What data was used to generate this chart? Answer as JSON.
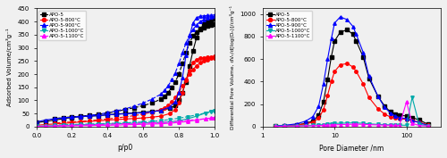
{
  "left": {
    "series": [
      {
        "label": "APO-5",
        "color": "#000000",
        "marker": "s",
        "adsorption_x": [
          0.0,
          0.05,
          0.1,
          0.15,
          0.2,
          0.25,
          0.3,
          0.35,
          0.4,
          0.45,
          0.5,
          0.55,
          0.6,
          0.65,
          0.7,
          0.75,
          0.78,
          0.8,
          0.82,
          0.84,
          0.86,
          0.88,
          0.9,
          0.92,
          0.94,
          0.96,
          0.98,
          1.0
        ],
        "adsorption_y": [
          15,
          20,
          25,
          30,
          35,
          38,
          40,
          42,
          45,
          48,
          50,
          52,
          55,
          58,
          62,
          70,
          80,
          100,
          130,
          170,
          230,
          290,
          340,
          370,
          390,
          400,
          405,
          410
        ],
        "desorption_x": [
          1.0,
          0.98,
          0.96,
          0.94,
          0.92,
          0.9,
          0.88,
          0.86,
          0.84,
          0.82,
          0.8,
          0.78,
          0.76,
          0.74,
          0.72,
          0.7,
          0.65,
          0.6,
          0.55,
          0.5,
          0.45,
          0.4,
          0.35,
          0.3,
          0.25,
          0.2,
          0.15,
          0.1
        ],
        "desorption_y": [
          390,
          388,
          383,
          378,
          372,
          360,
          345,
          320,
          280,
          240,
          200,
          170,
          150,
          130,
          115,
          105,
          90,
          80,
          72,
          65,
          58,
          52,
          47,
          43,
          40,
          37,
          35,
          30
        ]
      },
      {
        "label": "APO-5-800°C",
        "color": "#ff0000",
        "marker": "o",
        "adsorption_x": [
          0.0,
          0.05,
          0.1,
          0.15,
          0.2,
          0.25,
          0.3,
          0.35,
          0.4,
          0.45,
          0.5,
          0.55,
          0.6,
          0.65,
          0.7,
          0.75,
          0.78,
          0.8,
          0.82,
          0.84,
          0.86,
          0.88,
          0.9,
          0.92,
          0.94,
          0.96,
          0.98,
          1.0
        ],
        "adsorption_y": [
          5,
          8,
          10,
          12,
          15,
          18,
          20,
          22,
          25,
          27,
          29,
          31,
          33,
          36,
          40,
          50,
          65,
          90,
          130,
          175,
          215,
          245,
          255,
          260,
          262,
          264,
          265,
          267
        ],
        "desorption_x": [
          1.0,
          0.98,
          0.96,
          0.94,
          0.92,
          0.9,
          0.88,
          0.86,
          0.84,
          0.82,
          0.8,
          0.78,
          0.76,
          0.74,
          0.72,
          0.7,
          0.65,
          0.6,
          0.55,
          0.5,
          0.45,
          0.4,
          0.35,
          0.3,
          0.25,
          0.2,
          0.15,
          0.1
        ],
        "desorption_y": [
          262,
          260,
          255,
          250,
          243,
          232,
          218,
          200,
          178,
          155,
          130,
          110,
          95,
          82,
          72,
          65,
          55,
          48,
          42,
          37,
          33,
          29,
          26,
          23,
          20,
          18,
          16,
          13
        ]
      },
      {
        "label": "APO-5-900°C",
        "color": "#0000ff",
        "marker": "^",
        "adsorption_x": [
          0.0,
          0.05,
          0.1,
          0.15,
          0.2,
          0.25,
          0.3,
          0.35,
          0.4,
          0.45,
          0.5,
          0.55,
          0.6,
          0.65,
          0.7,
          0.75,
          0.78,
          0.8,
          0.82,
          0.84,
          0.86,
          0.88,
          0.9,
          0.92,
          0.94,
          0.96,
          0.98,
          1.0
        ],
        "adsorption_y": [
          18,
          25,
          30,
          33,
          36,
          38,
          40,
          42,
          45,
          47,
          49,
          51,
          53,
          56,
          62,
          75,
          95,
          130,
          185,
          270,
          345,
          395,
          415,
          420,
          422,
          423,
          424,
          425
        ],
        "desorption_x": [
          1.0,
          0.98,
          0.96,
          0.94,
          0.92,
          0.9,
          0.88,
          0.86,
          0.84,
          0.82,
          0.8,
          0.78,
          0.76,
          0.74,
          0.72,
          0.7,
          0.65,
          0.6,
          0.55,
          0.5,
          0.45,
          0.4,
          0.35,
          0.3,
          0.25,
          0.2,
          0.15,
          0.1
        ],
        "desorption_y": [
          420,
          418,
          414,
          408,
          400,
          388,
          370,
          348,
          318,
          280,
          240,
          205,
          178,
          155,
          138,
          124,
          105,
          90,
          78,
          68,
          60,
          53,
          47,
          43,
          39,
          36,
          33,
          30
        ]
      },
      {
        "label": "APO-5-1000°C",
        "color": "#00aaaa",
        "marker": "v",
        "adsorption_x": [
          0.0,
          0.05,
          0.1,
          0.15,
          0.2,
          0.25,
          0.3,
          0.35,
          0.4,
          0.45,
          0.5,
          0.55,
          0.6,
          0.65,
          0.7,
          0.75,
          0.8,
          0.85,
          0.9,
          0.95,
          0.98,
          1.0
        ],
        "adsorption_y": [
          2,
          3,
          4,
          5,
          6,
          7,
          8,
          9,
          10,
          11,
          12,
          13,
          14,
          15,
          16,
          18,
          22,
          30,
          40,
          52,
          58,
          62
        ],
        "desorption_x": [
          1.0,
          0.98,
          0.95,
          0.9,
          0.85,
          0.8,
          0.75,
          0.7,
          0.65,
          0.6,
          0.55,
          0.5,
          0.45,
          0.4,
          0.35,
          0.3,
          0.25,
          0.2,
          0.15,
          0.1
        ],
        "desorption_y": [
          58,
          56,
          52,
          45,
          38,
          32,
          27,
          23,
          20,
          18,
          16,
          14,
          13,
          12,
          11,
          10,
          9,
          8,
          7,
          5
        ]
      },
      {
        "label": "APO-5-1100°C",
        "color": "#ff00ff",
        "marker": "^",
        "adsorption_x": [
          0.0,
          0.05,
          0.1,
          0.15,
          0.2,
          0.25,
          0.3,
          0.35,
          0.4,
          0.45,
          0.5,
          0.55,
          0.6,
          0.65,
          0.7,
          0.75,
          0.8,
          0.85,
          0.9,
          0.95,
          0.98,
          1.0
        ],
        "adsorption_y": [
          1,
          2,
          2,
          3,
          3,
          4,
          4,
          5,
          5,
          6,
          7,
          8,
          9,
          10,
          11,
          13,
          16,
          20,
          25,
          30,
          33,
          35
        ],
        "desorption_x": [
          1.0,
          0.98,
          0.95,
          0.9,
          0.85,
          0.8,
          0.75,
          0.7,
          0.65,
          0.6,
          0.55,
          0.5,
          0.45,
          0.4,
          0.35,
          0.3,
          0.25,
          0.2,
          0.15,
          0.1
        ],
        "desorption_y": [
          33,
          32,
          30,
          27,
          24,
          21,
          18,
          16,
          14,
          13,
          12,
          11,
          10,
          9,
          8,
          7,
          6,
          5,
          4,
          3
        ]
      }
    ],
    "xlabel": "p/p0",
    "ylabel": "Adsorbed Volume/cm³g⁻¹",
    "ylim": [
      0,
      450
    ],
    "xlim": [
      0.0,
      1.0
    ],
    "yticks": [
      0,
      50,
      100,
      150,
      200,
      250,
      300,
      350,
      400,
      450
    ],
    "xticks": [
      0.0,
      0.2,
      0.4,
      0.6,
      0.8,
      1.0
    ]
  },
  "right": {
    "series": [
      {
        "label": "APO-5",
        "color": "#000000",
        "marker": "s",
        "x": [
          1.5,
          2,
          3,
          4,
          5,
          6,
          7,
          8,
          9,
          10,
          12,
          15,
          18,
          20,
          25,
          30,
          40,
          50,
          60,
          70,
          80,
          100,
          120,
          150,
          200
        ],
        "y": [
          5,
          8,
          15,
          30,
          50,
          100,
          220,
          420,
          620,
          760,
          840,
          860,
          820,
          760,
          620,
          430,
          270,
          180,
          130,
          110,
          100,
          95,
          80,
          60,
          20
        ]
      },
      {
        "label": "APO-5-800°C",
        "color": "#ff0000",
        "marker": "o",
        "x": [
          1.5,
          2,
          3,
          4,
          5,
          6,
          7,
          8,
          9,
          10,
          12,
          15,
          18,
          20,
          25,
          30,
          40,
          50,
          60,
          70,
          80,
          100,
          120,
          150,
          200
        ],
        "y": [
          5,
          8,
          15,
          25,
          40,
          75,
          150,
          280,
          400,
          490,
          550,
          560,
          530,
          490,
          380,
          260,
          160,
          110,
          85,
          75,
          70,
          65,
          55,
          40,
          15
        ]
      },
      {
        "label": "APO-5-900°C",
        "color": "#0000ff",
        "marker": "^",
        "x": [
          1.5,
          2,
          3,
          4,
          5,
          6,
          7,
          8,
          9,
          10,
          12,
          15,
          18,
          20,
          25,
          30,
          40,
          50,
          60,
          70,
          80,
          100,
          120,
          150,
          200
        ],
        "y": [
          8,
          12,
          25,
          50,
          90,
          180,
          380,
          600,
          780,
          920,
          975,
          950,
          890,
          820,
          660,
          450,
          270,
          170,
          120,
          95,
          80,
          70,
          55,
          35,
          10
        ]
      },
      {
        "label": "APO-5-1000°C",
        "color": "#00aaaa",
        "marker": "v",
        "x": [
          1.5,
          2,
          3,
          4,
          5,
          6,
          7,
          8,
          9,
          10,
          12,
          15,
          18,
          20,
          25,
          30,
          40,
          50,
          60,
          70,
          80,
          100,
          120,
          150,
          200
        ],
        "y": [
          5,
          6,
          8,
          10,
          12,
          15,
          18,
          22,
          25,
          28,
          30,
          32,
          33,
          32,
          30,
          25,
          20,
          18,
          15,
          14,
          13,
          12,
          260,
          20,
          8
        ]
      },
      {
        "label": "APO-5-1100°C",
        "color": "#ff00ff",
        "marker": "^",
        "x": [
          1.5,
          2,
          3,
          4,
          5,
          6,
          7,
          8,
          9,
          10,
          12,
          15,
          18,
          20,
          25,
          30,
          40,
          50,
          60,
          70,
          80,
          100,
          120,
          150,
          200
        ],
        "y": [
          3,
          4,
          5,
          7,
          8,
          10,
          12,
          13,
          15,
          16,
          18,
          20,
          21,
          22,
          20,
          18,
          15,
          13,
          12,
          11,
          10,
          220,
          30,
          10,
          5
        ]
      }
    ],
    "xlabel": "Pore Diameter /nm",
    "ylabel": "Differential Pore Volume, dVₙ/d[log(Dₙ)]/cm³g⁻¹",
    "ylim": [
      0,
      1050
    ],
    "xlim_log": [
      1,
      300
    ],
    "yticks": [
      0,
      200,
      400,
      600,
      800,
      1000
    ]
  },
  "bg_color": "#f0f0f0",
  "legend_labels": [
    "APO-5",
    "APO-5-800°C",
    "APO-5-900°C",
    "APO-5-1000°C",
    "APO-5-1100°C"
  ],
  "legend_colors": [
    "#000000",
    "#ff0000",
    "#0000ff",
    "#00aaaa",
    "#ff00ff"
  ],
  "legend_markers": [
    "s",
    "o",
    "^",
    "v",
    "^"
  ]
}
